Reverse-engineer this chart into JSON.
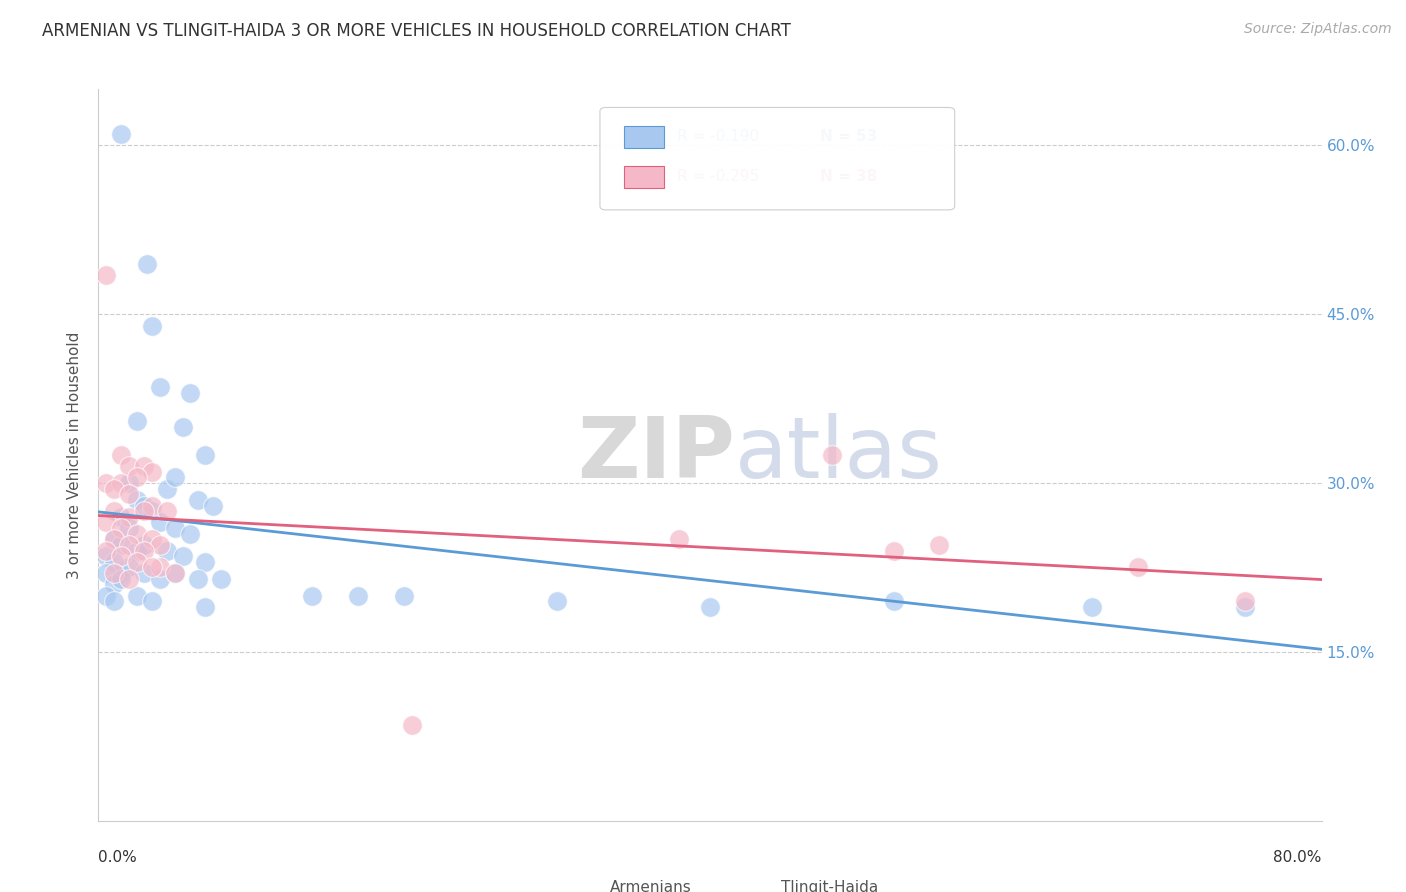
{
  "title": "ARMENIAN VS TLINGIT-HAIDA 3 OR MORE VEHICLES IN HOUSEHOLD CORRELATION CHART",
  "source": "Source: ZipAtlas.com",
  "ylabel": "3 or more Vehicles in Household",
  "xlim": [
    0.0,
    80.0
  ],
  "ylim": [
    0.0,
    65.0
  ],
  "yticks": [
    0,
    15,
    30,
    45,
    60
  ],
  "background_color": "#ffffff",
  "watermark_text": "ZIPatlas",
  "legend": {
    "armenian_R": "-0.190",
    "armenian_N": "53",
    "tlingit_R": "-0.295",
    "tlingit_N": "38"
  },
  "armenian_color": "#a8c8f0",
  "tlingit_color": "#f5b8c8",
  "armenian_line_color": "#5b9bd5",
  "tlingit_line_color": "#e0607e",
  "armenian_points": [
    [
      1.5,
      61.0
    ],
    [
      3.2,
      49.5
    ],
    [
      4.0,
      38.5
    ],
    [
      3.5,
      44.0
    ],
    [
      2.5,
      35.5
    ],
    [
      5.5,
      35.0
    ],
    [
      6.0,
      38.0
    ],
    [
      7.0,
      32.5
    ],
    [
      2.0,
      30.0
    ],
    [
      2.5,
      28.5
    ],
    [
      3.0,
      28.0
    ],
    [
      4.5,
      29.5
    ],
    [
      5.0,
      30.5
    ],
    [
      6.5,
      28.5
    ],
    [
      7.5,
      28.0
    ],
    [
      1.5,
      27.0
    ],
    [
      2.0,
      26.0
    ],
    [
      3.5,
      27.5
    ],
    [
      4.0,
      26.5
    ],
    [
      5.0,
      26.0
    ],
    [
      6.0,
      25.5
    ],
    [
      1.0,
      25.0
    ],
    [
      1.5,
      24.5
    ],
    [
      2.5,
      24.0
    ],
    [
      3.0,
      24.5
    ],
    [
      4.5,
      24.0
    ],
    [
      5.5,
      23.5
    ],
    [
      7.0,
      23.0
    ],
    [
      1.5,
      22.0
    ],
    [
      2.0,
      22.5
    ],
    [
      3.0,
      22.0
    ],
    [
      4.0,
      21.5
    ],
    [
      5.0,
      22.0
    ],
    [
      6.5,
      21.5
    ],
    [
      8.0,
      21.5
    ],
    [
      0.5,
      23.5
    ],
    [
      1.0,
      23.0
    ],
    [
      0.5,
      22.0
    ],
    [
      1.0,
      21.0
    ],
    [
      1.5,
      21.5
    ],
    [
      0.5,
      20.0
    ],
    [
      1.0,
      19.5
    ],
    [
      2.5,
      20.0
    ],
    [
      3.5,
      19.5
    ],
    [
      7.0,
      19.0
    ],
    [
      14.0,
      20.0
    ],
    [
      17.0,
      20.0
    ],
    [
      20.0,
      20.0
    ],
    [
      30.0,
      19.5
    ],
    [
      40.0,
      19.0
    ],
    [
      52.0,
      19.5
    ],
    [
      65.0,
      19.0
    ],
    [
      75.0,
      19.0
    ]
  ],
  "tlingit_points": [
    [
      0.5,
      48.5
    ],
    [
      1.5,
      32.5
    ],
    [
      2.0,
      31.5
    ],
    [
      3.0,
      31.5
    ],
    [
      3.5,
      31.0
    ],
    [
      0.5,
      30.0
    ],
    [
      1.5,
      30.0
    ],
    [
      2.5,
      30.5
    ],
    [
      1.0,
      29.5
    ],
    [
      2.0,
      29.0
    ],
    [
      3.5,
      28.0
    ],
    [
      1.0,
      27.5
    ],
    [
      2.0,
      27.0
    ],
    [
      3.0,
      27.5
    ],
    [
      4.5,
      27.5
    ],
    [
      0.5,
      26.5
    ],
    [
      1.5,
      26.0
    ],
    [
      2.5,
      25.5
    ],
    [
      3.5,
      25.0
    ],
    [
      4.0,
      24.5
    ],
    [
      1.0,
      25.0
    ],
    [
      2.0,
      24.5
    ],
    [
      3.0,
      24.0
    ],
    [
      0.5,
      24.0
    ],
    [
      1.5,
      23.5
    ],
    [
      2.5,
      23.0
    ],
    [
      4.0,
      22.5
    ],
    [
      5.0,
      22.0
    ],
    [
      3.5,
      22.5
    ],
    [
      1.0,
      22.0
    ],
    [
      2.0,
      21.5
    ],
    [
      48.0,
      32.5
    ],
    [
      38.0,
      25.0
    ],
    [
      52.0,
      24.0
    ],
    [
      55.0,
      24.5
    ],
    [
      68.0,
      22.5
    ],
    [
      75.0,
      19.5
    ],
    [
      20.5,
      8.5
    ]
  ]
}
